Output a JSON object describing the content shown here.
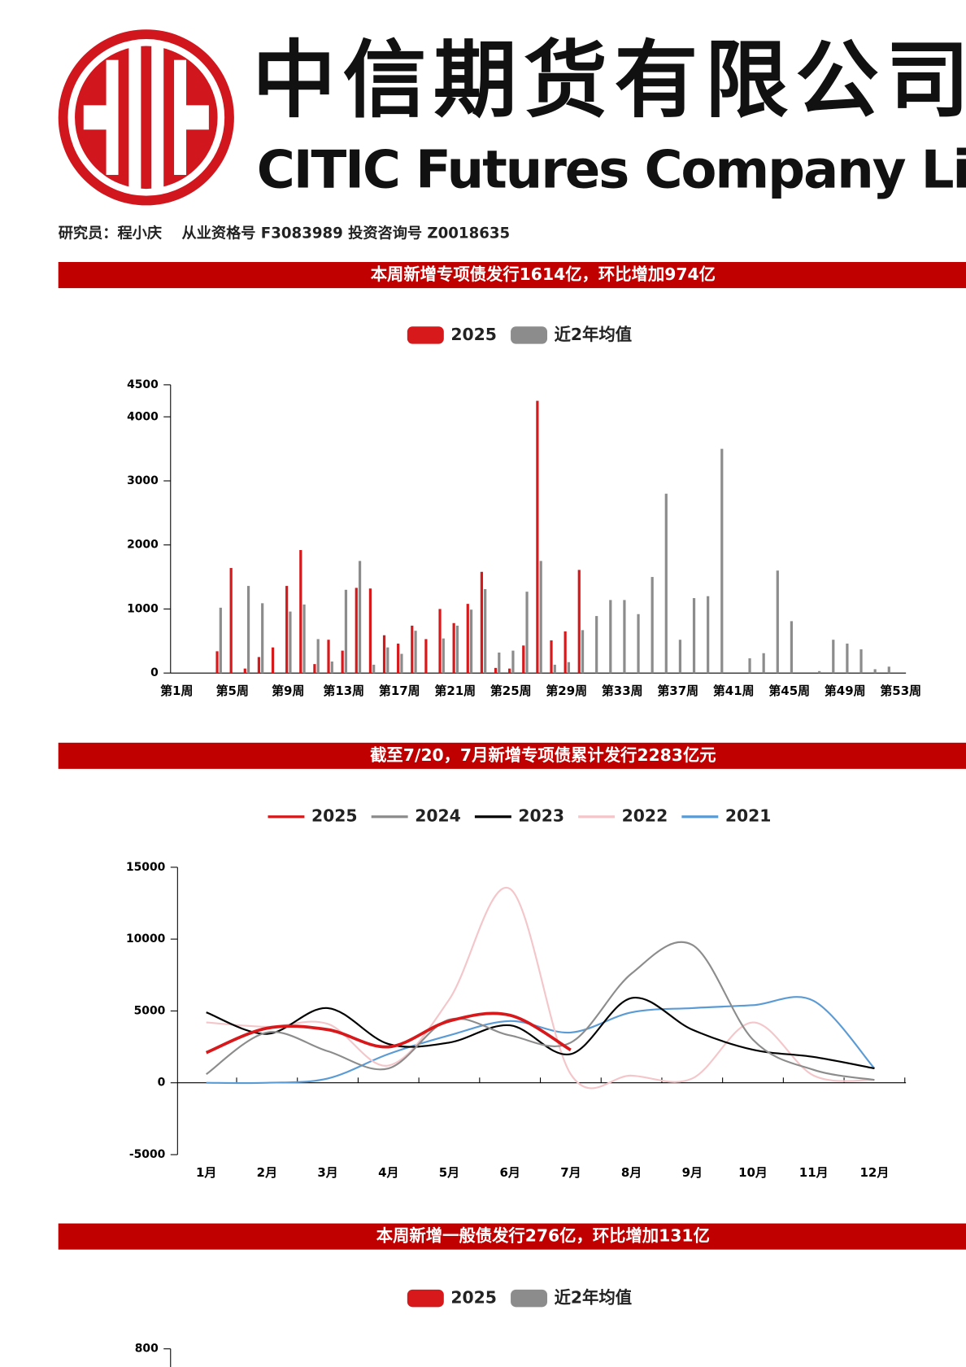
{
  "header": {
    "company_cn": "中信期货有限公司",
    "company_en": "CITIC Futures Company Limited",
    "researcher": "研究员：程小庆　 从业资格号 F3083989 投资咨询号 Z0018635"
  },
  "chart_data": [
    {
      "type": "bar",
      "title": "本周新增专项债发行1614亿，环比增加974亿",
      "categories": [
        "第1周",
        null,
        null,
        null,
        "第5周",
        null,
        null,
        null,
        "第9周",
        null,
        null,
        null,
        "第13周",
        null,
        null,
        null,
        "第17周",
        null,
        null,
        null,
        "第21周",
        null,
        null,
        null,
        "第25周",
        null,
        null,
        null,
        "第29周",
        null,
        null,
        null,
        "第33周",
        null,
        null,
        null,
        "第37周",
        null,
        null,
        null,
        "第41周",
        null,
        null,
        null,
        "第45周",
        null,
        null,
        null,
        "第49周",
        null,
        null,
        null,
        "第53周"
      ],
      "series": [
        {
          "name": "2025",
          "color": "#d7191c",
          "values": [
            0,
            0,
            340,
            1640,
            70,
            250,
            400,
            1360,
            1920,
            140,
            520,
            350,
            1330,
            1320,
            590,
            460,
            740,
            530,
            1000,
            780,
            1080,
            1580,
            80,
            70,
            430,
            4250,
            510,
            650,
            1610,
            null,
            null,
            null,
            null,
            null,
            null,
            null,
            null,
            null,
            null,
            null,
            null,
            null,
            null,
            null,
            null,
            null,
            null,
            null,
            null,
            null,
            null,
            null,
            null
          ]
        },
        {
          "name": "近2年均值",
          "color": "#8c8c8c",
          "values": [
            0,
            0,
            1020,
            0,
            1360,
            1090,
            0,
            960,
            1070,
            530,
            180,
            1300,
            1750,
            130,
            400,
            300,
            660,
            0,
            540,
            740,
            990,
            1310,
            320,
            350,
            1270,
            1750,
            130,
            170,
            670,
            890,
            1140,
            1140,
            920,
            1500,
            2800,
            520,
            1170,
            1200,
            3500,
            0,
            230,
            310,
            1600,
            810,
            0,
            30,
            520,
            460,
            370,
            60,
            100,
            0,
            0
          ]
        }
      ],
      "ylim": [
        0,
        4500
      ],
      "yticks": [
        0,
        1000,
        2000,
        3000,
        4000,
        4500
      ]
    },
    {
      "type": "line",
      "title": "截至7/20，7月新增专项债累计发行2283亿元",
      "categories": [
        "1月",
        "2月",
        "3月",
        "4月",
        "5月",
        "6月",
        "7月",
        "8月",
        "9月",
        "10月",
        "11月",
        "12月"
      ],
      "series": [
        {
          "name": "2025",
          "color": "#d7191c",
          "values": [
            2100,
            3800,
            3700,
            2500,
            4300,
            4700,
            2283,
            null,
            null,
            null,
            null,
            null
          ]
        },
        {
          "name": "2024",
          "color": "#8c8c8c",
          "values": [
            600,
            3500,
            2200,
            1000,
            4400,
            3300,
            2800,
            7600,
            9600,
            3000,
            900,
            200
          ]
        },
        {
          "name": "2023",
          "color": "#000000",
          "values": [
            4900,
            3400,
            5200,
            2700,
            2800,
            4000,
            2000,
            5900,
            3700,
            2300,
            1800,
            1000
          ]
        },
        {
          "name": "2022",
          "color": "#f4c6c9",
          "values": [
            4200,
            3900,
            4100,
            1200,
            5800,
            13500,
            600,
            500,
            300,
            4200,
            500,
            200
          ]
        },
        {
          "name": "2021",
          "color": "#5b9bd5",
          "values": [
            0,
            0,
            300,
            2000,
            3300,
            4300,
            3500,
            4900,
            5200,
            5400,
            5700,
            1000
          ]
        }
      ],
      "ylim": [
        -5000,
        15000
      ],
      "yticks": [
        -5000,
        0,
        5000,
        10000,
        15000
      ]
    },
    {
      "type": "bar",
      "title": "本周新增一般债发行276亿，环比增加131亿",
      "series": [
        {
          "name": "2025",
          "color": "#d7191c"
        },
        {
          "name": "近2年均值",
          "color": "#8c8c8c"
        }
      ],
      "ylim": [
        0,
        800
      ],
      "yticks": [
        800
      ]
    }
  ]
}
